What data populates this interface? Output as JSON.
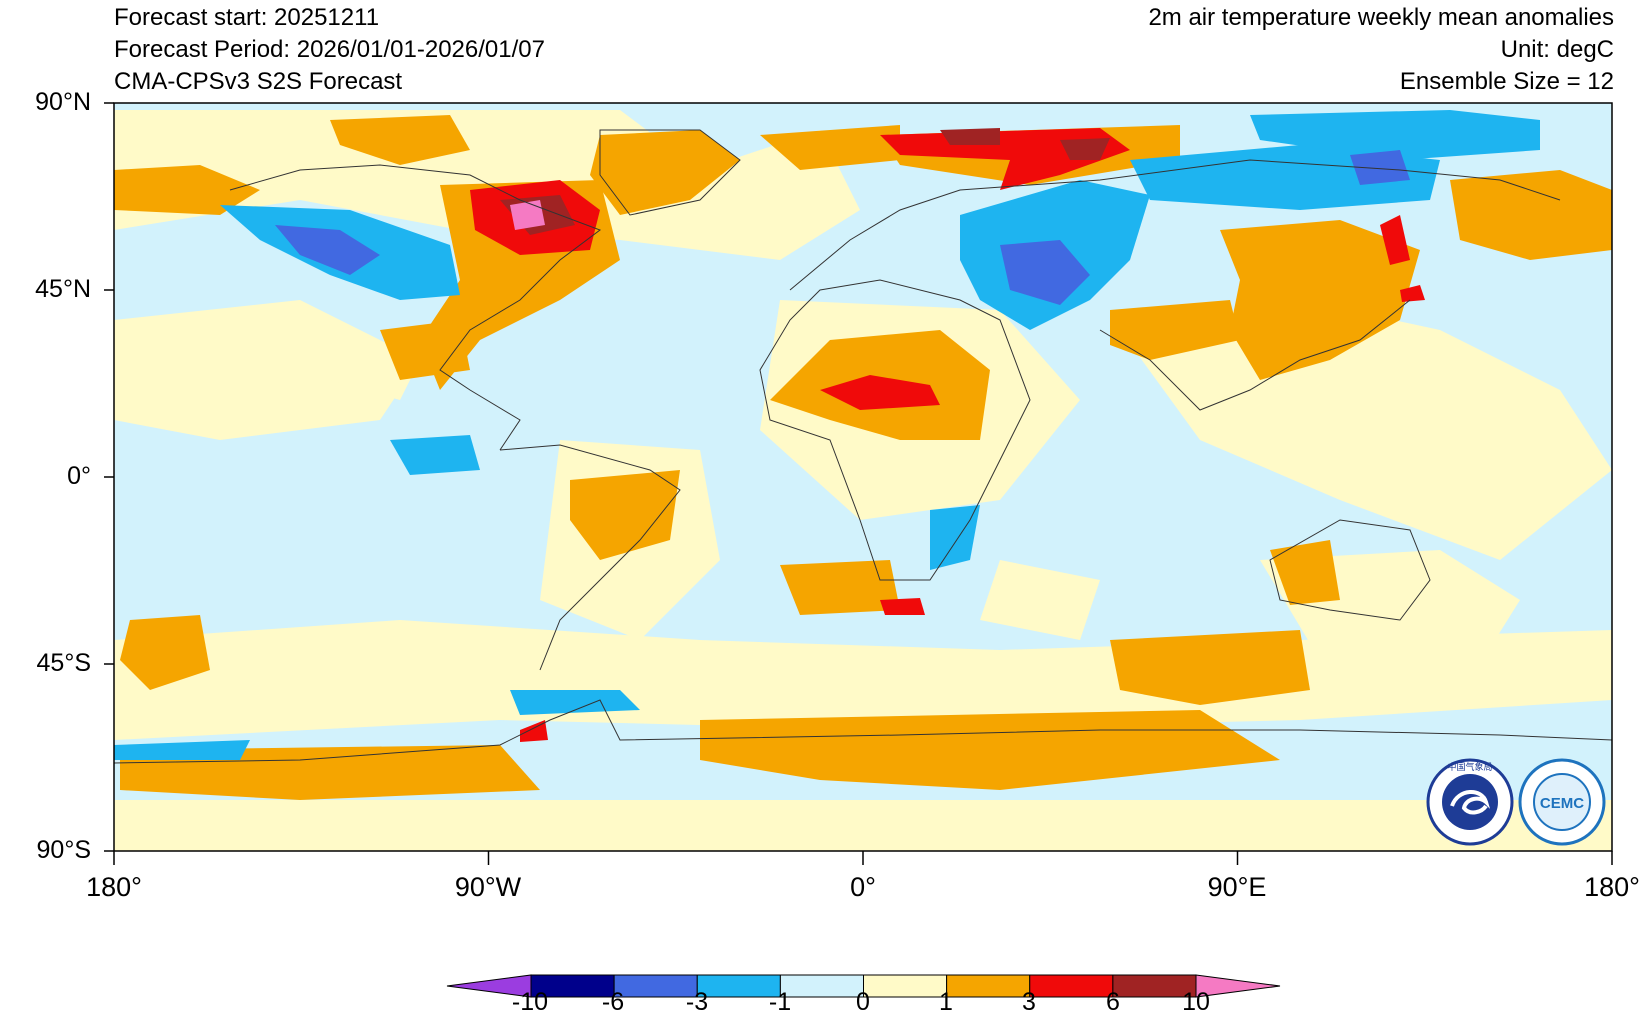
{
  "header": {
    "forecast_start": "Forecast start: 20251211",
    "forecast_period": "Forecast Period: 2026/01/01-2026/01/07",
    "model": "CMA-CPSv3 S2S Forecast",
    "title": "2m air temperature weekly mean anomalies",
    "unit": "Unit: degC",
    "ensemble": "Ensemble Size = 12"
  },
  "axes": {
    "lat_labels": [
      "90°N",
      "45°N",
      "0°",
      "45°S",
      "90°S"
    ],
    "lon_labels": [
      "180°",
      "90°W",
      "0°",
      "90°E",
      "180°"
    ]
  },
  "colorbar": {
    "colors": [
      "#9b3de0",
      "#00008b",
      "#4169e1",
      "#1eb4f0",
      "#d2f2fc",
      "#fffac8",
      "#f5a500",
      "#f00a0a",
      "#a02323",
      "#f57ac3"
    ],
    "labels": [
      "-10",
      "-6",
      "-3",
      "-1",
      "0",
      "1",
      "3",
      "6",
      "10"
    ]
  },
  "logos": {
    "cma_text": "中国气象局",
    "cemc_text": "CEMC"
  },
  "map_colors": {
    "ocean_base": "#d2f2fc",
    "land_outline": "#333333"
  }
}
